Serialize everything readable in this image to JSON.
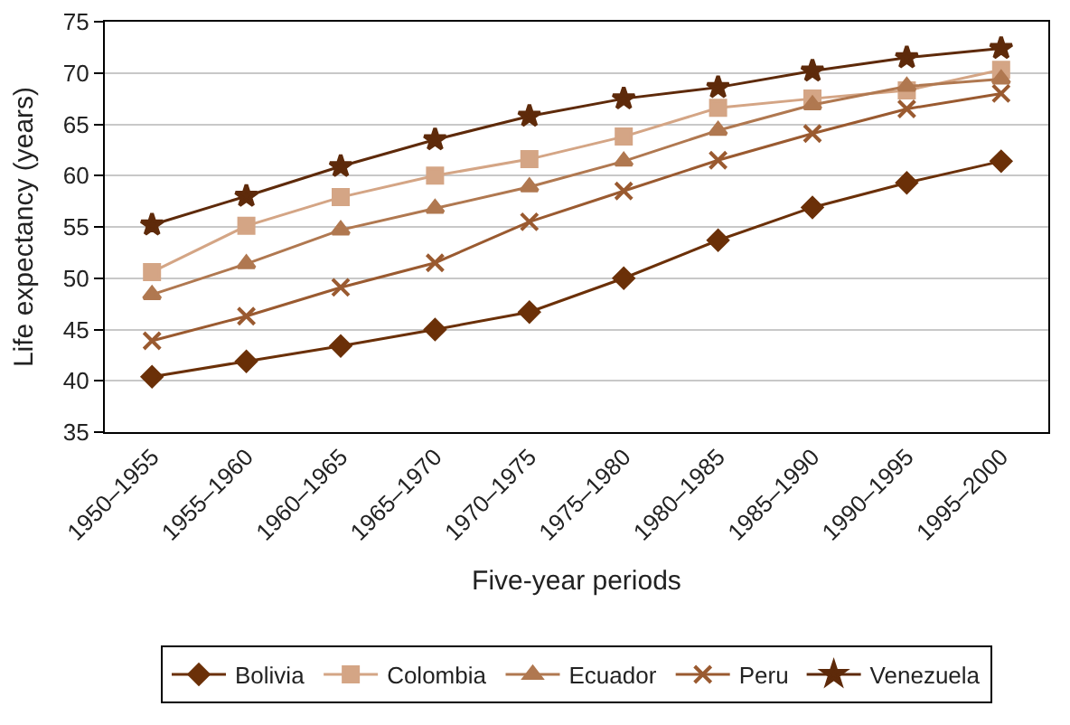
{
  "chart_data": {
    "type": "line",
    "xlabel": "Five-year periods",
    "ylabel": "Life expectancy (years)",
    "categories": [
      "1950–1955",
      "1955–1960",
      "1960–1965",
      "1965–1970",
      "1970–1975",
      "1975–1980",
      "1980–1985",
      "1985–1990",
      "1990–1995",
      "1995–2000"
    ],
    "series": [
      {
        "name": "Bolivia",
        "color": "#6b3008",
        "marker": "diamond",
        "values": [
          40.4,
          41.9,
          43.4,
          45.0,
          46.7,
          50.0,
          53.7,
          56.9,
          59.3,
          61.4
        ]
      },
      {
        "name": "Colombia",
        "color": "#d4a585",
        "marker": "square",
        "values": [
          50.6,
          55.1,
          57.9,
          60.0,
          61.6,
          63.8,
          66.6,
          67.5,
          68.3,
          70.3
        ]
      },
      {
        "name": "Ecuador",
        "color": "#b07850",
        "marker": "triangle",
        "values": [
          48.4,
          51.4,
          54.7,
          56.8,
          58.9,
          61.4,
          64.4,
          66.9,
          68.7,
          69.4
        ]
      },
      {
        "name": "Peru",
        "color": "#9a5a30",
        "marker": "cross",
        "values": [
          43.9,
          46.3,
          49.1,
          51.5,
          55.5,
          58.5,
          61.5,
          64.1,
          66.5,
          68.0
        ]
      },
      {
        "name": "Venezuela",
        "color": "#5e2a0a",
        "marker": "star",
        "values": [
          55.2,
          58.0,
          60.9,
          63.5,
          65.8,
          67.5,
          68.6,
          70.2,
          71.5,
          72.4
        ]
      }
    ],
    "ylim": [
      35,
      75
    ],
    "yticks": [
      35,
      40,
      45,
      50,
      55,
      60,
      65,
      70,
      75
    ],
    "grid": "y",
    "legend": "bottom",
    "line_style": "solid"
  }
}
